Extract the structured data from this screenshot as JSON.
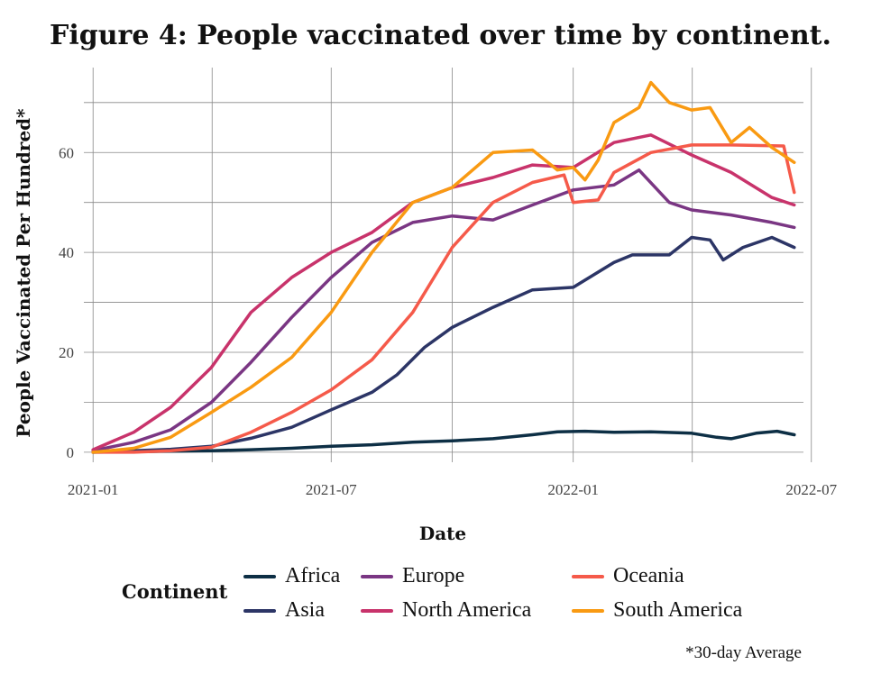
{
  "chart_data": {
    "type": "line",
    "title": "Figure 4: People vaccinated over time by continent.",
    "xlabel": "Date",
    "ylabel": "People Vaccinated Per Hundred*",
    "footnote": "*30-day Average",
    "legend_title": "Continent",
    "legend_position": "bottom",
    "grid": true,
    "x_ticks": [
      "2021-01",
      "2021-07",
      "2022-01",
      "2022-07"
    ],
    "y_ticks": [
      0,
      20,
      40,
      60
    ],
    "xlim": [
      "2020-12-25",
      "2022-06-25"
    ],
    "ylim": [
      -2,
      77
    ],
    "series": [
      {
        "name": "Africa",
        "color": "#0d2f45",
        "points": [
          [
            "2021-01-01",
            0
          ],
          [
            "2021-02-01",
            0.1
          ],
          [
            "2021-03-01",
            0.2
          ],
          [
            "2021-04-01",
            0.3
          ],
          [
            "2021-05-01",
            0.5
          ],
          [
            "2021-06-01",
            0.8
          ],
          [
            "2021-07-01",
            1.2
          ],
          [
            "2021-08-01",
            1.5
          ],
          [
            "2021-09-01",
            2.0
          ],
          [
            "2021-10-01",
            2.3
          ],
          [
            "2021-11-01",
            2.7
          ],
          [
            "2021-12-01",
            3.5
          ],
          [
            "2021-12-20",
            4.1
          ],
          [
            "2022-01-10",
            4.2
          ],
          [
            "2022-02-01",
            4.0
          ],
          [
            "2022-03-01",
            4.1
          ],
          [
            "2022-04-01",
            3.8
          ],
          [
            "2022-04-20",
            3.0
          ],
          [
            "2022-05-01",
            2.7
          ],
          [
            "2022-05-20",
            3.8
          ],
          [
            "2022-06-05",
            4.2
          ],
          [
            "2022-06-18",
            3.5
          ]
        ]
      },
      {
        "name": "Asia",
        "color": "#2c3566",
        "points": [
          [
            "2021-01-01",
            0
          ],
          [
            "2021-02-01",
            0.3
          ],
          [
            "2021-03-01",
            0.6
          ],
          [
            "2021-04-01",
            1.2
          ],
          [
            "2021-05-01",
            2.8
          ],
          [
            "2021-06-01",
            5.0
          ],
          [
            "2021-07-01",
            8.5
          ],
          [
            "2021-08-01",
            12.0
          ],
          [
            "2021-08-20",
            15.5
          ],
          [
            "2021-09-10",
            21.0
          ],
          [
            "2021-10-01",
            25.0
          ],
          [
            "2021-11-01",
            29.0
          ],
          [
            "2021-12-01",
            32.5
          ],
          [
            "2022-01-01",
            33.0
          ],
          [
            "2022-02-01",
            38.0
          ],
          [
            "2022-02-15",
            39.5
          ],
          [
            "2022-03-15",
            39.5
          ],
          [
            "2022-04-01",
            43.0
          ],
          [
            "2022-04-15",
            42.5
          ],
          [
            "2022-04-25",
            38.5
          ],
          [
            "2022-05-10",
            41.0
          ],
          [
            "2022-06-01",
            43.0
          ],
          [
            "2022-06-18",
            41.0
          ]
        ]
      },
      {
        "name": "Europe",
        "color": "#7a3683",
        "points": [
          [
            "2021-01-01",
            0.3
          ],
          [
            "2021-02-01",
            2.0
          ],
          [
            "2021-03-01",
            4.5
          ],
          [
            "2021-04-01",
            10.0
          ],
          [
            "2021-05-01",
            18.0
          ],
          [
            "2021-06-01",
            27.0
          ],
          [
            "2021-07-01",
            35.0
          ],
          [
            "2021-08-01",
            42.0
          ],
          [
            "2021-09-01",
            46.0
          ],
          [
            "2021-10-01",
            47.3
          ],
          [
            "2021-11-01",
            46.5
          ],
          [
            "2021-12-01",
            49.5
          ],
          [
            "2022-01-01",
            52.5
          ],
          [
            "2022-02-01",
            53.5
          ],
          [
            "2022-02-20",
            56.5
          ],
          [
            "2022-03-15",
            50.0
          ],
          [
            "2022-04-01",
            48.5
          ],
          [
            "2022-05-01",
            47.5
          ],
          [
            "2022-06-01",
            46.0
          ],
          [
            "2022-06-18",
            45.0
          ]
        ]
      },
      {
        "name": "North America",
        "color": "#c8336b",
        "points": [
          [
            "2021-01-01",
            0.5
          ],
          [
            "2021-02-01",
            4.0
          ],
          [
            "2021-03-01",
            9.0
          ],
          [
            "2021-04-01",
            17.0
          ],
          [
            "2021-05-01",
            28.0
          ],
          [
            "2021-06-01",
            35.0
          ],
          [
            "2021-07-01",
            40.0
          ],
          [
            "2021-08-01",
            44.0
          ],
          [
            "2021-09-01",
            50.0
          ],
          [
            "2021-10-01",
            53.0
          ],
          [
            "2021-11-01",
            55.0
          ],
          [
            "2021-12-01",
            57.5
          ],
          [
            "2022-01-01",
            57.0
          ],
          [
            "2022-02-01",
            62.0
          ],
          [
            "2022-03-01",
            63.5
          ],
          [
            "2022-04-01",
            59.5
          ],
          [
            "2022-05-01",
            56.0
          ],
          [
            "2022-06-01",
            51.0
          ],
          [
            "2022-06-18",
            49.5
          ]
        ]
      },
      {
        "name": "Oceania",
        "color": "#f55a4a",
        "points": [
          [
            "2021-01-01",
            0
          ],
          [
            "2021-02-01",
            0
          ],
          [
            "2021-03-01",
            0.3
          ],
          [
            "2021-04-01",
            1.0
          ],
          [
            "2021-05-01",
            4.0
          ],
          [
            "2021-06-01",
            8.0
          ],
          [
            "2021-07-01",
            12.5
          ],
          [
            "2021-08-01",
            18.5
          ],
          [
            "2021-09-01",
            28.0
          ],
          [
            "2021-10-01",
            41.0
          ],
          [
            "2021-11-01",
            50.0
          ],
          [
            "2021-12-01",
            54.0
          ],
          [
            "2021-12-25",
            55.5
          ],
          [
            "2022-01-01",
            50.0
          ],
          [
            "2022-01-20",
            50.5
          ],
          [
            "2022-02-01",
            56.0
          ],
          [
            "2022-03-01",
            60.0
          ],
          [
            "2022-04-01",
            61.5
          ],
          [
            "2022-05-01",
            61.5
          ],
          [
            "2022-06-10",
            61.3
          ],
          [
            "2022-06-18",
            52.0
          ]
        ]
      },
      {
        "name": "South America",
        "color": "#f99a12",
        "points": [
          [
            "2021-01-01",
            0
          ],
          [
            "2021-02-01",
            0.8
          ],
          [
            "2021-03-01",
            3.0
          ],
          [
            "2021-04-01",
            8.0
          ],
          [
            "2021-05-01",
            13.0
          ],
          [
            "2021-06-01",
            19.0
          ],
          [
            "2021-07-01",
            28.0
          ],
          [
            "2021-08-01",
            40.0
          ],
          [
            "2021-09-01",
            50.0
          ],
          [
            "2021-10-01",
            53.0
          ],
          [
            "2021-11-01",
            60.0
          ],
          [
            "2021-12-01",
            60.5
          ],
          [
            "2021-12-20",
            56.5
          ],
          [
            "2022-01-01",
            57.0
          ],
          [
            "2022-01-10",
            54.5
          ],
          [
            "2022-01-20",
            58.5
          ],
          [
            "2022-02-01",
            66.0
          ],
          [
            "2022-02-20",
            69.0
          ],
          [
            "2022-03-01",
            74.0
          ],
          [
            "2022-03-15",
            70.0
          ],
          [
            "2022-04-01",
            68.5
          ],
          [
            "2022-04-15",
            69.0
          ],
          [
            "2022-05-01",
            62.0
          ],
          [
            "2022-05-15",
            65.0
          ],
          [
            "2022-06-01",
            61.0
          ],
          [
            "2022-06-18",
            58.0
          ]
        ]
      }
    ]
  }
}
